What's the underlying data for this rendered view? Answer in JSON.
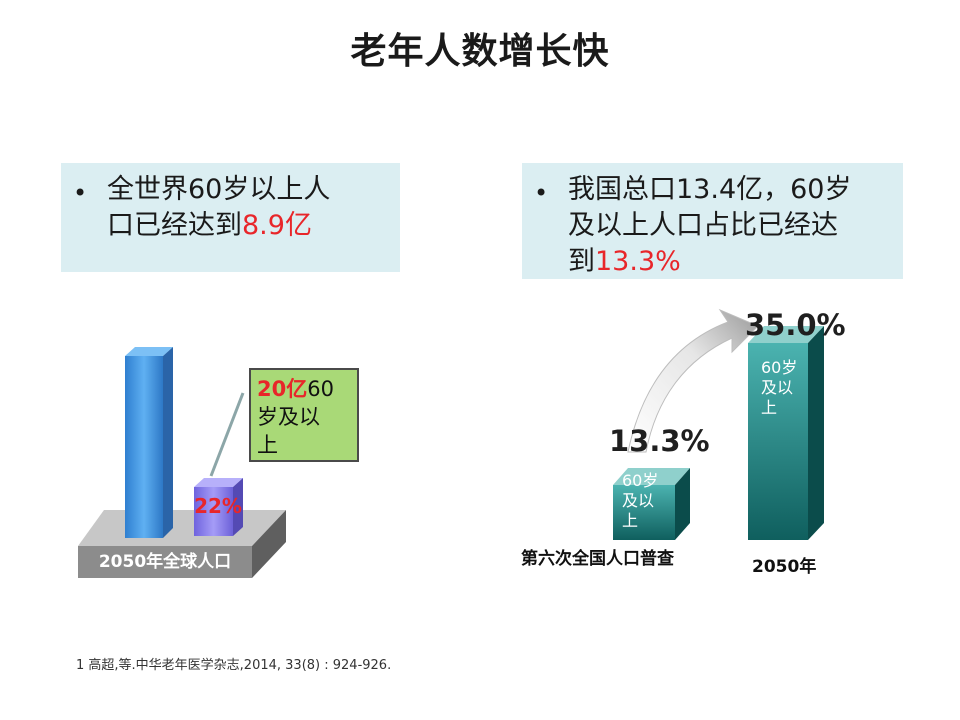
{
  "slide": {
    "title": "老年人数增长快",
    "left_bullet": {
      "bullet": "•",
      "line1": "全世界60岁以上人",
      "line2_prefix": "口已经达到",
      "line2_highlight": "8.9亿"
    },
    "right_bullet": {
      "bullet": "•",
      "line1": "我国总口13.4亿，60岁",
      "line2": "及以上人口占比已经达",
      "line3_prefix": "到",
      "line3_highlight": "13.3%"
    },
    "global_chart": {
      "base_label": "2050年全球人口",
      "share_label": "22%",
      "callout_highlight": "20亿",
      "callout_line1_rest": "60",
      "callout_line2": "岁及以",
      "callout_line3": "上"
    },
    "china_chart": {
      "bar_text_line1": "60岁",
      "bar_text_line2": "及以",
      "bar_text_line3": "上",
      "bars": [
        {
          "label": "第六次全国人口普查",
          "value": "13.3%"
        },
        {
          "label": "2050年",
          "value": "35.0%"
        }
      ]
    },
    "footnote": "1 高超,等.中华老年医学杂志,2014, 33(8) : 924-926.",
    "colors": {
      "box_bg": "#dbeef2",
      "highlight_red": "#e8262a",
      "callout_green": "#a9d977",
      "teal_bar": "#1f8f8c",
      "blue_bar": "#4d9ee8",
      "purple_bar": "#8a7df0"
    }
  }
}
